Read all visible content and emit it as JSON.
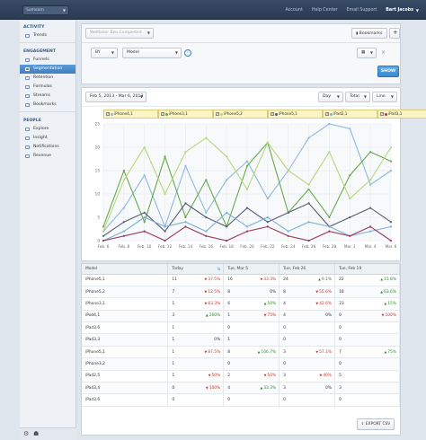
{
  "topbar": {
    "app_selector": "Somearn",
    "links": [
      "Account",
      "Help Center",
      "Email Support"
    ],
    "user": "Bart Jacobs"
  },
  "sidebar": {
    "sections": [
      {
        "title": "ACTIVITY",
        "items": [
          {
            "label": "Trends",
            "icon": "trends-icon"
          }
        ]
      },
      {
        "title": "ENGAGEMENT",
        "items": [
          {
            "label": "Funnels",
            "icon": "funnel-icon"
          },
          {
            "label": "Segmentation",
            "icon": "segmentation-icon",
            "active": true
          },
          {
            "label": "Retention",
            "icon": "retention-icon"
          },
          {
            "label": "Formulas",
            "icon": "formula-icon"
          },
          {
            "label": "Streams",
            "icon": "streams-icon"
          },
          {
            "label": "Bookmarks",
            "icon": "bookmark-icon"
          }
        ]
      },
      {
        "title": "PEOPLE",
        "items": [
          {
            "label": "Explore",
            "icon": "explore-icon"
          },
          {
            "label": "Insight",
            "icon": "insight-icon"
          },
          {
            "label": "Notifications",
            "icon": "notification-icon"
          },
          {
            "label": "Revenue",
            "icon": "revenue-icon"
          }
        ]
      }
    ]
  },
  "query": {
    "event_select": "WeMailer Box Completed",
    "bookmarks_label": "Bookmarks",
    "by_label": "BY",
    "property_select": "Model",
    "show_label": "SHOW"
  },
  "chart_controls": {
    "date_range": "Feb 5, 2013 - Mar 6, 2013",
    "unit": "Day",
    "measure": "Total",
    "chart_type": "Line"
  },
  "chart_data": {
    "type": "line",
    "x": [
      "Feb. 6",
      "Feb. 8",
      "Feb. 10",
      "Feb. 12",
      "Feb. 14",
      "Feb. 16",
      "Feb. 18",
      "Feb. 20",
      "Feb. 22",
      "Feb. 24",
      "Feb. 26",
      "Feb. 28",
      "Mar. 2",
      "Mar. 4",
      "Mar. 6"
    ],
    "ylim": [
      0,
      25
    ],
    "yticks": [
      0,
      5,
      10,
      15,
      20,
      25
    ],
    "series": [
      {
        "name": "iPhone4,1",
        "color": "#8fb8dc",
        "values": [
          2,
          7,
          14,
          3,
          16,
          6,
          13,
          17,
          9,
          15,
          22,
          25,
          24,
          12,
          15
        ]
      },
      {
        "name": "iPhone3,1",
        "color": "#6aa84f",
        "values": [
          3,
          15,
          4,
          18,
          5,
          13,
          3,
          16,
          21,
          6,
          11,
          5,
          14,
          19,
          17
        ]
      },
      {
        "name": "iPhone5,2",
        "color": "#b7d77a",
        "values": [
          2,
          13,
          20,
          10,
          19,
          22,
          18,
          11,
          21,
          15,
          12,
          19,
          9,
          13,
          20
        ]
      },
      {
        "name": "iPhone5,1",
        "color": "#555d6e",
        "values": [
          1,
          4,
          6,
          2,
          8,
          5,
          3,
          7,
          4,
          6,
          8,
          3,
          5,
          7,
          4
        ]
      },
      {
        "name": "iPad2,1",
        "color": "#7ab0d8",
        "values": [
          0,
          2,
          5,
          3,
          4,
          2,
          6,
          3,
          5,
          2,
          4,
          3,
          1,
          2,
          3
        ]
      },
      {
        "name": "iPad3,1",
        "color": "#9b3a5a",
        "values": [
          0,
          1,
          2,
          0,
          3,
          1,
          0,
          2,
          3,
          1,
          0,
          2,
          1,
          3,
          0
        ]
      }
    ]
  },
  "table": {
    "columns": [
      "Model",
      "Today",
      "Tue, Mar 5",
      "Tue, Feb 26",
      "Tue, Feb 19"
    ],
    "rows": [
      {
        "model": "iPhone5,1",
        "cells": [
          {
            "v": "11",
            "p": "37.5%",
            "d": "down"
          },
          {
            "v": "16",
            "p": "33.3%",
            "d": "down"
          },
          {
            "v": "24",
            "p": "9.1%",
            "d": "up"
          },
          {
            "v": "22",
            "p": "15.8%",
            "d": "up"
          }
        ]
      },
      {
        "model": "iPhone5,2",
        "cells": [
          {
            "v": "7",
            "p": "12.5%",
            "d": "down"
          },
          {
            "v": "8",
            "p": "0%",
            "d": ""
          },
          {
            "v": "8",
            "p": "55.6%",
            "d": "down"
          },
          {
            "v": "18",
            "p": "63.6%",
            "d": "up"
          }
        ]
      },
      {
        "model": "iPhone3,1",
        "cells": [
          {
            "v": "1",
            "p": "83.3%",
            "d": "down"
          },
          {
            "v": "6",
            "p": "50%",
            "d": "up"
          },
          {
            "v": "4",
            "p": "42.6%",
            "d": "down"
          },
          {
            "v": "23",
            "p": "15%",
            "d": "up"
          }
        ]
      },
      {
        "model": "iPod4,1",
        "cells": [
          {
            "v": "3",
            "p": "200%",
            "d": "up"
          },
          {
            "v": "1",
            "p": "75%",
            "d": "down"
          },
          {
            "v": "4",
            "p": "0%",
            "d": ""
          },
          {
            "v": "0",
            "p": "100%",
            "d": "down"
          }
        ]
      },
      {
        "model": "iPad3,6",
        "cells": [
          {
            "v": "1",
            "p": "",
            "d": ""
          },
          {
            "v": "0",
            "p": "",
            "d": ""
          },
          {
            "v": "0",
            "p": "",
            "d": ""
          },
          {
            "v": "0",
            "p": "",
            "d": ""
          }
        ]
      },
      {
        "model": "iPad3,3",
        "cells": [
          {
            "v": "1",
            "p": "0%",
            "d": ""
          },
          {
            "v": "1",
            "p": "",
            "d": ""
          },
          {
            "v": "0",
            "p": "",
            "d": ""
          },
          {
            "v": "0",
            "p": "",
            "d": ""
          }
        ]
      },
      {
        "model": "iPhone5,1",
        "cells": [
          {
            "v": "1",
            "p": "87.5%",
            "d": "down"
          },
          {
            "v": "8",
            "p": "166.7%",
            "d": "up"
          },
          {
            "v": "3",
            "p": "57.1%",
            "d": "down"
          },
          {
            "v": "7",
            "p": "75%",
            "d": "up"
          }
        ]
      },
      {
        "model": "iPhone3,2",
        "cells": [
          {
            "v": "1",
            "p": "",
            "d": ""
          },
          {
            "v": "0",
            "p": "",
            "d": ""
          },
          {
            "v": "0",
            "p": "",
            "d": ""
          },
          {
            "v": "0",
            "p": "",
            "d": ""
          }
        ]
      },
      {
        "model": "iPad2,5",
        "cells": [
          {
            "v": "1",
            "p": "50%",
            "d": "down"
          },
          {
            "v": "2",
            "p": "50%",
            "d": "down"
          },
          {
            "v": "3",
            "p": "40%",
            "d": "down"
          },
          {
            "v": "5",
            "p": "",
            "d": ""
          }
        ]
      },
      {
        "model": "iPad3,4",
        "cells": [
          {
            "v": "0",
            "p": "100%",
            "d": "down"
          },
          {
            "v": "4",
            "p": "33.3%",
            "d": "up"
          },
          {
            "v": "3",
            "p": "0%",
            "d": ""
          },
          {
            "v": "3",
            "p": "",
            "d": ""
          }
        ]
      },
      {
        "model": "iPad3,6",
        "cells": [
          {
            "v": "0",
            "p": "",
            "d": ""
          },
          {
            "v": "0",
            "p": "",
            "d": ""
          },
          {
            "v": "0",
            "p": "",
            "d": ""
          },
          {
            "v": "0",
            "p": "",
            "d": ""
          }
        ]
      }
    ],
    "export_label": "EXPORT CSV"
  }
}
